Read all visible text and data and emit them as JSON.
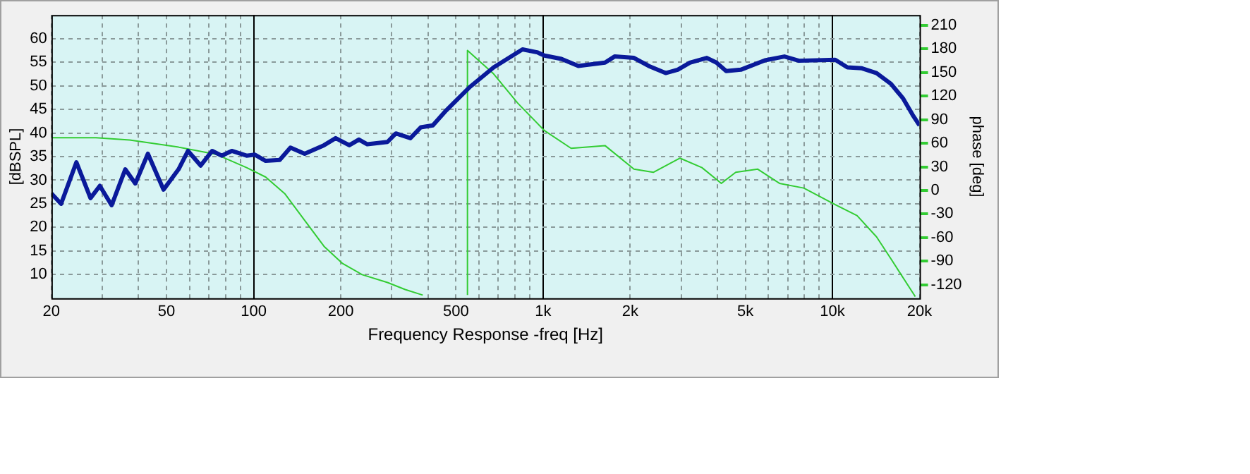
{
  "chart_data": {
    "type": "line",
    "xlabel": "Frequency Response -freq [Hz]",
    "ylabel": "[dBSPL]",
    "y2label": "phase [deg]",
    "log": "x",
    "grid": true,
    "legend": false,
    "xlim": [
      20,
      20000
    ],
    "xticks": [
      20,
      {
        "value": 30,
        "label": null
      },
      {
        "value": 40,
        "label": null
      },
      50,
      {
        "value": 60,
        "label": null
      },
      {
        "value": 70,
        "label": null
      },
      {
        "value": 80,
        "label": null
      },
      {
        "value": 90,
        "label": null
      },
      100,
      200,
      {
        "value": 300,
        "label": null
      },
      {
        "value": 400,
        "label": null
      },
      500,
      {
        "value": 600,
        "label": null
      },
      {
        "value": 700,
        "label": null
      },
      {
        "value": 800,
        "label": null
      },
      {
        "value": 900,
        "label": null
      },
      {
        "value": 1000,
        "label": "1k"
      },
      {
        "value": 2000,
        "label": "2k"
      },
      {
        "value": 3000,
        "label": null
      },
      {
        "value": 4000,
        "label": null
      },
      {
        "value": 5000,
        "label": "5k"
      },
      {
        "value": 6000,
        "label": null
      },
      {
        "value": 7000,
        "label": null
      },
      {
        "value": 8000,
        "label": null
      },
      {
        "value": 9000,
        "label": null
      },
      {
        "value": 10000,
        "label": "10k"
      },
      {
        "value": 20000,
        "label": "20k"
      }
    ],
    "ylim": [
      5,
      65
    ],
    "yticks": [
      10,
      15,
      20,
      25,
      30,
      35,
      40,
      45,
      50,
      55,
      60
    ],
    "y2lim": [
      -137,
      223
    ],
    "y2ticks": [
      -120,
      -90,
      -60,
      -30,
      0,
      30,
      60,
      90,
      120,
      150,
      180,
      210
    ],
    "series": [
      {
        "color": "#0a1a9a",
        "x": [
          20,
          21.6,
          24.4,
          27.3,
          29.4,
          32.3,
          36,
          39,
          43.1,
          48.8,
          55,
          59.3,
          65.6,
          71.9,
          77.5,
          84,
          94.5,
          101,
          110,
          123,
          134,
          150,
          175,
          192,
          214,
          231,
          247,
          290,
          310,
          348,
          378,
          416,
          458,
          555,
          675,
          849,
          953,
          1011,
          1157,
          1324,
          1637,
          1767,
          2061,
          2316,
          2652,
          2919,
          3215,
          3680,
          3973,
          4293,
          4822,
          5847,
          6823,
          7659,
          10223,
          11260,
          12640,
          14200,
          15930,
          17550,
          18940,
          20000
        ],
        "values": [
          27.2,
          25,
          33.8,
          26.2,
          28.8,
          24.7,
          32.3,
          29.3,
          35.6,
          28,
          32.3,
          36.2,
          33.1,
          36.2,
          35.2,
          36.2,
          35.2,
          35.4,
          34.1,
          34.3,
          36.9,
          35.6,
          37.4,
          38.9,
          37.4,
          38.6,
          37.6,
          38.1,
          39.9,
          38.9,
          41.2,
          41.6,
          44.5,
          49.6,
          53.9,
          57.7,
          57.1,
          56.4,
          55.7,
          54.2,
          54.9,
          56.2,
          55.9,
          54.2,
          52.7,
          53.4,
          54.9,
          55.9,
          54.9,
          53.1,
          53.4,
          55.4,
          56.2,
          55.3,
          55.5,
          53.9,
          53.7,
          52.7,
          50.4,
          47.3,
          43.8,
          41.6
        ]
      },
      {
        "color": "#33cc33",
        "axis": "y2",
        "x": [
          20,
          28.5,
          37.3,
          55,
          74,
          94.5,
          110,
          128,
          150,
          175,
          203,
          237,
          290,
          334,
          384,
          null,
          548,
          548,
          675,
          817,
          1011,
          1250,
          1637,
          2061,
          2404,
          2973,
          3540,
          4130,
          4633,
          5520,
          6560,
          7960,
          10223,
          12160,
          14200,
          15930,
          19330
        ],
        "values": [
          67,
          67,
          64,
          55,
          46,
          29,
          17,
          -4,
          -38,
          -71,
          -93,
          -107,
          -117,
          -126,
          -133,
          null,
          -133,
          178,
          148,
          111,
          76,
          53.5,
          57,
          27,
          23,
          41,
          29,
          9,
          23,
          27,
          9,
          3,
          -18,
          -32,
          -59,
          -87,
          -135
        ]
      }
    ]
  }
}
